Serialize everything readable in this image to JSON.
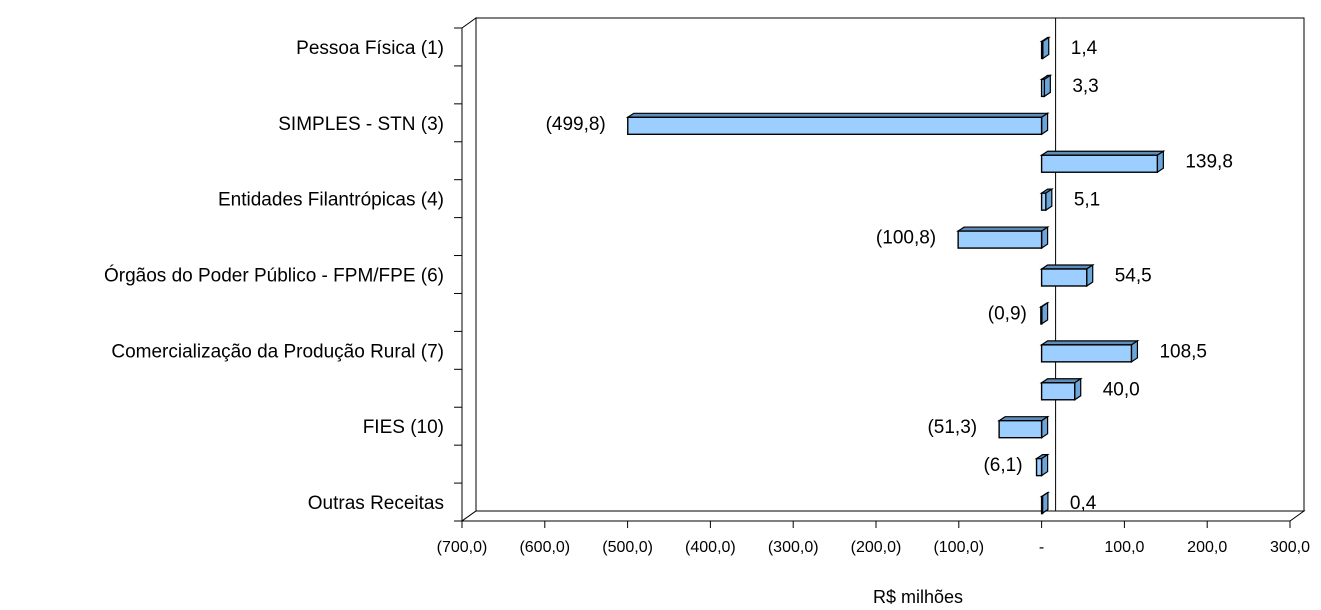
{
  "chart_data": {
    "type": "bar",
    "orientation": "horizontal",
    "three_d": true,
    "categories": [
      "Pessoa Física (1)",
      "",
      "SIMPLES - STN (3)",
      "",
      "Entidades Filantrópicas (4)",
      "",
      "Órgãos do Poder Público - FPM/FPE (6)",
      "",
      "Comercialização da Produção Rural (7)",
      "",
      "FIES (10)",
      "",
      "Outras Receitas"
    ],
    "values": [
      1.4,
      3.3,
      -499.8,
      139.8,
      5.1,
      -100.8,
      54.5,
      -0.9,
      108.5,
      40.0,
      -51.3,
      -6.1,
      0.4
    ],
    "data_labels": [
      "1,4",
      "3,3",
      "(499,8)",
      "139,8",
      "5,1",
      "(100,8)",
      "54,5",
      "(0,9)",
      "108,5",
      "40,0",
      "(51,3)",
      "(6,1)",
      "0,4"
    ],
    "x_ticks": [
      -700,
      -600,
      -500,
      -400,
      -300,
      -200,
      -100,
      0,
      100,
      200,
      300
    ],
    "x_tick_labels": [
      "(700,0)",
      "(600,0)",
      "(500,0)",
      "(400,0)",
      "(300,0)",
      "(200,0)",
      "(100,0)",
      "-",
      "100,0",
      "200,0",
      "300,0"
    ],
    "xlim": [
      -700,
      300
    ],
    "xlabel": "R$ milhões",
    "ylabel": "",
    "title": "",
    "grid": false,
    "legend": "none",
    "colors": {
      "bar_face": "#9ccfff",
      "bar_side": "#6aa6da",
      "bar_top": "#5f8db9",
      "bar_outline": "#000000",
      "axis": "#000000"
    }
  }
}
